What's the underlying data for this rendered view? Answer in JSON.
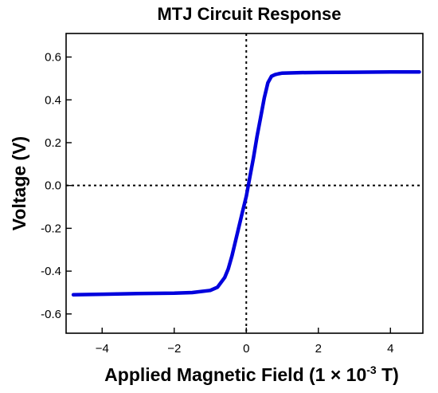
{
  "chart_data": {
    "type": "line",
    "title": "MTJ Circuit Response",
    "xlabel_prefix": "Applied Magnetic Field (1 × 10",
    "xlabel_exponent": "-3",
    "xlabel_suffix": " T)",
    "ylabel": "Voltage (V)",
    "xlim": [
      -5.0,
      4.9
    ],
    "ylim": [
      -0.69,
      0.71
    ],
    "x_ticks": [
      -4,
      -2,
      0,
      2,
      4
    ],
    "x_tick_labels": [
      "−4",
      "−2",
      "0",
      "2",
      "4"
    ],
    "y_ticks": [
      0.6,
      0.4,
      0.2,
      0.0,
      -0.2,
      -0.4,
      -0.6
    ],
    "y_tick_labels": [
      "0.6",
      "0.4",
      "0.2",
      "0.0",
      "-0.2",
      "-0.4",
      "-0.6"
    ],
    "reference_lines": {
      "x": 0,
      "y": 0,
      "style": "dotted"
    },
    "grid": false,
    "series": [
      {
        "color": "#0000dd",
        "x": [
          -4.8,
          -4.0,
          -3.0,
          -2.0,
          -1.5,
          -1.0,
          -0.8,
          -0.6,
          -0.5,
          -0.4,
          -0.3,
          -0.2,
          -0.1,
          0.0,
          0.1,
          0.2,
          0.3,
          0.4,
          0.5,
          0.6,
          0.7,
          0.8,
          0.9,
          1.0,
          1.5,
          2.0,
          3.0,
          4.0,
          4.8
        ],
        "y": [
          -0.51,
          -0.508,
          -0.505,
          -0.503,
          -0.5,
          -0.49,
          -0.475,
          -0.43,
          -0.39,
          -0.33,
          -0.26,
          -0.19,
          -0.12,
          -0.05,
          0.04,
          0.13,
          0.23,
          0.32,
          0.41,
          0.48,
          0.51,
          0.518,
          0.522,
          0.525,
          0.527,
          0.528,
          0.529,
          0.53,
          0.53
        ]
      }
    ]
  }
}
